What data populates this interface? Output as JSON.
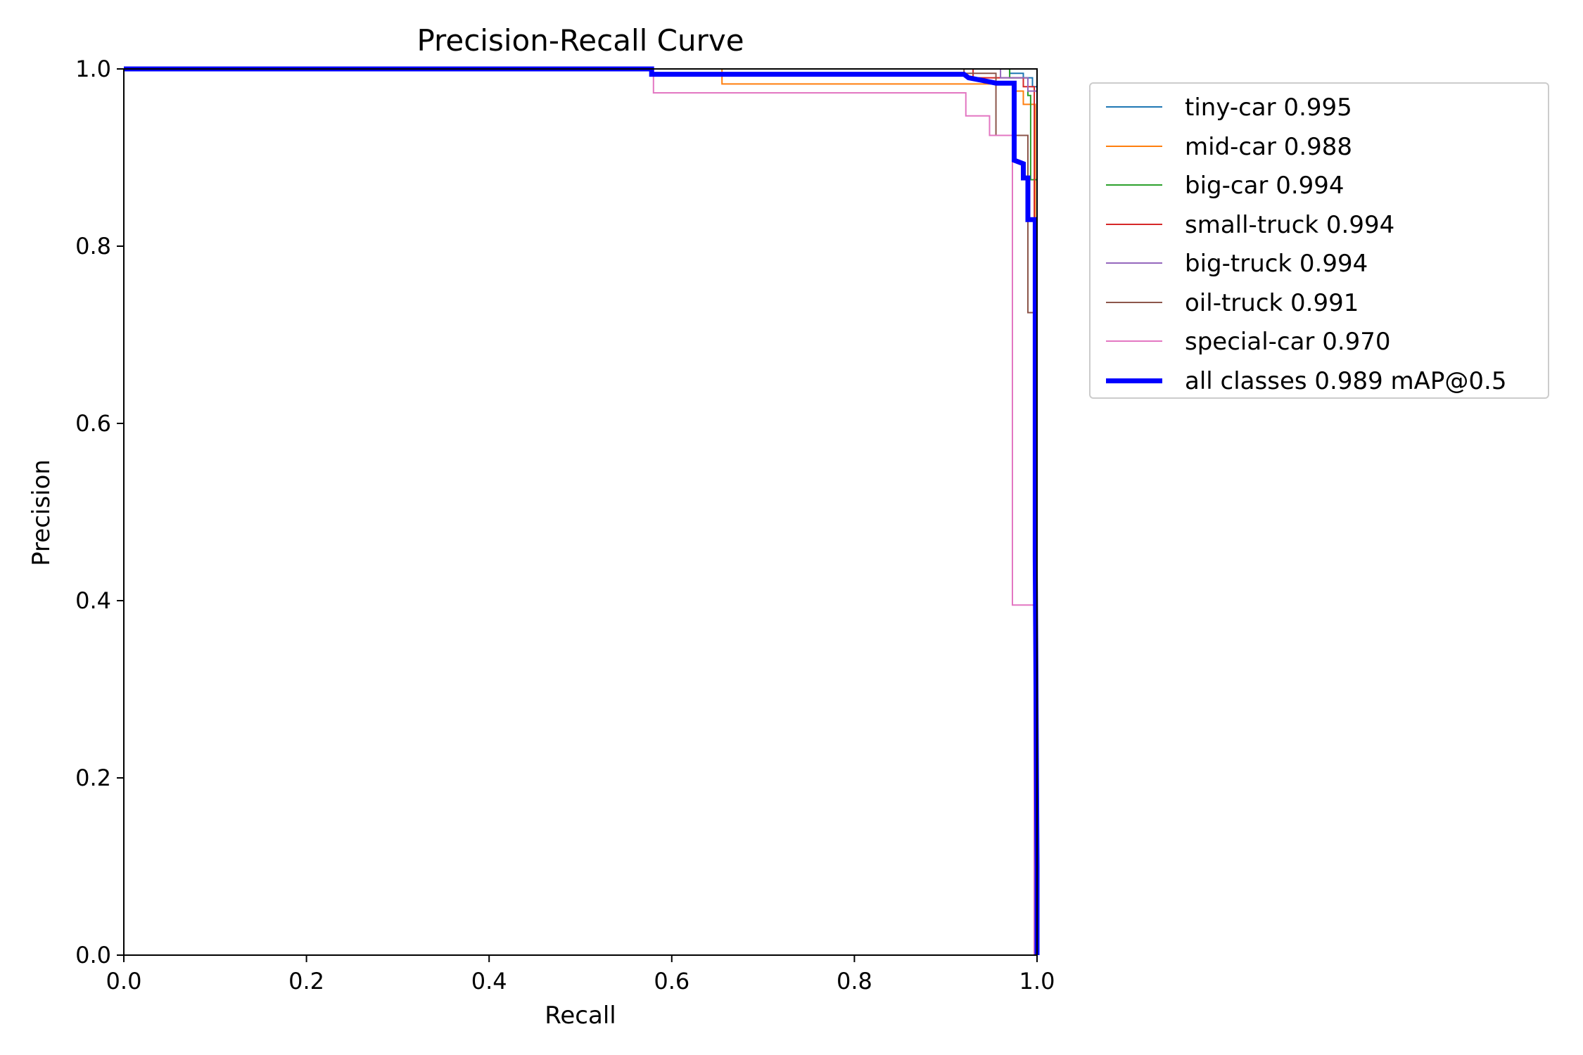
{
  "chart_data": {
    "type": "line",
    "title": "Precision-Recall Curve",
    "xlabel": "Recall",
    "ylabel": "Precision",
    "xlim": [
      0,
      1
    ],
    "ylim": [
      0,
      1
    ],
    "xticks": [
      "0.0",
      "0.2",
      "0.4",
      "0.6",
      "0.8",
      "1.0"
    ],
    "yticks": [
      "0.0",
      "0.2",
      "0.4",
      "0.6",
      "0.8",
      "1.0"
    ],
    "grid": false,
    "legend_position": "outside-top-right",
    "series": [
      {
        "name": "tiny-car 0.995",
        "color": "#1f77b4",
        "width": "thin",
        "x": [
          0,
          0.97,
          0.97,
          0.985,
          0.985,
          0.995,
          0.995,
          1.0,
          1.0
        ],
        "y": [
          1.0,
          1.0,
          0.995,
          0.995,
          0.99,
          0.99,
          0.98,
          0.98,
          0.0
        ]
      },
      {
        "name": "mid-car 0.988",
        "color": "#ff7f0e",
        "width": "thin",
        "x": [
          0,
          0.655,
          0.655,
          0.975,
          0.975,
          0.985,
          0.985,
          0.998,
          0.998
        ],
        "y": [
          1.0,
          1.0,
          0.983,
          0.983,
          0.975,
          0.975,
          0.96,
          0.96,
          0.0
        ]
      },
      {
        "name": "big-car 0.994",
        "color": "#2ca02c",
        "width": "thin",
        "x": [
          0,
          0.97,
          0.97,
          0.99,
          0.99,
          0.993,
          0.993,
          1.0,
          1.0
        ],
        "y": [
          1.0,
          1.0,
          0.99,
          0.99,
          0.97,
          0.97,
          0.875,
          0.875,
          0.0
        ]
      },
      {
        "name": "small-truck 0.994",
        "color": "#d62728",
        "width": "thin",
        "x": [
          0,
          0.93,
          0.93,
          0.985,
          0.985,
          0.997,
          0.997
        ],
        "y": [
          1.0,
          1.0,
          0.99,
          0.99,
          0.98,
          0.98,
          0.0
        ]
      },
      {
        "name": "big-truck 0.994",
        "color": "#9467bd",
        "width": "thin",
        "x": [
          0,
          0.96,
          0.96,
          0.99,
          0.99,
          1.0,
          1.0
        ],
        "y": [
          1.0,
          1.0,
          0.99,
          0.99,
          0.975,
          0.975,
          0.0
        ]
      },
      {
        "name": "oil-truck 0.991",
        "color": "#8c564b",
        "width": "thin",
        "x": [
          0,
          0.92,
          0.92,
          0.955,
          0.955,
          0.99,
          0.99,
          1.0,
          1.0
        ],
        "y": [
          1.0,
          1.0,
          0.995,
          0.995,
          0.925,
          0.925,
          0.725,
          0.725,
          0.0
        ]
      },
      {
        "name": "special-car 0.970",
        "color": "#e377c2",
        "width": "thin",
        "x": [
          0,
          0.58,
          0.58,
          0.922,
          0.922,
          0.948,
          0.948,
          0.973,
          0.973,
          0.997,
          0.997
        ],
        "y": [
          1.0,
          1.0,
          0.973,
          0.973,
          0.947,
          0.947,
          0.925,
          0.925,
          0.395,
          0.395,
          0.0
        ]
      },
      {
        "name": "all classes 0.989 mAP@0.5",
        "color": "#0000ff",
        "width": "thick",
        "x": [
          0,
          0.578,
          0.578,
          0.92,
          0.925,
          0.935,
          0.945,
          0.955,
          0.975,
          0.975,
          0.985,
          0.985,
          0.99,
          0.99,
          0.998,
          0.998,
          1.0,
          1.0
        ],
        "y": [
          1.0,
          1.0,
          0.994,
          0.994,
          0.99,
          0.988,
          0.986,
          0.984,
          0.984,
          0.897,
          0.893,
          0.877,
          0.877,
          0.83,
          0.83,
          0.45,
          0.1,
          0.0
        ]
      }
    ]
  }
}
